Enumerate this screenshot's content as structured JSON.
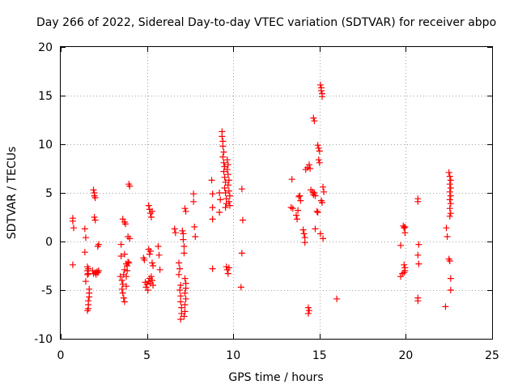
{
  "chart_data": {
    "type": "scatter",
    "title": "Day 266 of 2022, Sidereal Day-to-day VTEC variation (SDTVAR) for receiver abpo",
    "xlabel": "GPS time / hours",
    "ylabel": "SDTVAR / TECUs",
    "xlim": [
      0,
      25
    ],
    "ylim": [
      -10,
      20
    ],
    "xticks": [
      0,
      5,
      10,
      15,
      20,
      25
    ],
    "yticks": [
      -10,
      -5,
      0,
      5,
      10,
      15,
      20
    ],
    "grid": true,
    "marker": "+",
    "color": "#ff0000",
    "series": [
      {
        "name": "SDTVAR",
        "points": [
          [
            0.7,
            2.4
          ],
          [
            0.7,
            2.1
          ],
          [
            0.75,
            1.4
          ],
          [
            0.7,
            -2.4
          ],
          [
            1.4,
            1.3
          ],
          [
            1.45,
            0.4
          ],
          [
            1.4,
            -1.1
          ],
          [
            1.45,
            -4.1
          ],
          [
            1.55,
            -2.6
          ],
          [
            1.55,
            -3.0
          ],
          [
            1.55,
            -3.4
          ],
          [
            1.6,
            -2.8
          ],
          [
            1.6,
            -3.3
          ],
          [
            1.65,
            -4.9
          ],
          [
            1.65,
            -5.3
          ],
          [
            1.65,
            -5.7
          ],
          [
            1.6,
            -6.1
          ],
          [
            1.6,
            -6.5
          ],
          [
            1.6,
            -6.9
          ],
          [
            1.55,
            -7.1
          ],
          [
            1.9,
            5.3
          ],
          [
            1.95,
            5.0
          ],
          [
            1.95,
            4.7
          ],
          [
            2.0,
            4.5
          ],
          [
            1.95,
            2.5
          ],
          [
            2.0,
            2.2
          ],
          [
            1.85,
            -3.0
          ],
          [
            1.9,
            -3.3
          ],
          [
            2.0,
            -3.2
          ],
          [
            2.05,
            -3.4
          ],
          [
            2.1,
            -3.1
          ],
          [
            2.15,
            -3.2
          ],
          [
            2.2,
            -3.0
          ],
          [
            2.2,
            -0.3
          ],
          [
            2.15,
            -0.5
          ],
          [
            3.5,
            -0.3
          ],
          [
            3.5,
            -1.5
          ],
          [
            3.45,
            -3.6
          ],
          [
            3.55,
            -4.0
          ],
          [
            3.6,
            -4.4
          ],
          [
            3.55,
            -4.9
          ],
          [
            3.6,
            -5.3
          ],
          [
            3.65,
            -5.8
          ],
          [
            3.7,
            -6.2
          ],
          [
            3.65,
            -3.4
          ],
          [
            3.7,
            -2.9
          ],
          [
            3.7,
            -1.3
          ],
          [
            3.6,
            2.3
          ],
          [
            3.7,
            2.0
          ],
          [
            3.75,
            1.8
          ],
          [
            3.8,
            -2.3
          ],
          [
            3.85,
            -2.5
          ],
          [
            3.9,
            -2.1
          ],
          [
            3.95,
            -2.2
          ],
          [
            3.9,
            0.5
          ],
          [
            4.0,
            0.3
          ],
          [
            3.95,
            5.9
          ],
          [
            4.0,
            5.7
          ],
          [
            3.85,
            -3.0
          ],
          [
            3.8,
            -3.6
          ],
          [
            3.8,
            -4.6
          ],
          [
            4.8,
            -1.7
          ],
          [
            4.85,
            -1.9
          ],
          [
            4.9,
            -4.2
          ],
          [
            4.95,
            -4.7
          ],
          [
            5.0,
            -4.4
          ],
          [
            5.05,
            -5.0
          ],
          [
            5.1,
            -4.1
          ],
          [
            5.15,
            -3.8
          ],
          [
            5.2,
            -4.3
          ],
          [
            5.25,
            -3.6
          ],
          [
            5.3,
            -4.0
          ],
          [
            5.35,
            -4.5
          ],
          [
            5.1,
            -0.8
          ],
          [
            5.15,
            -1.3
          ],
          [
            5.2,
            -1.0
          ],
          [
            5.3,
            -2.2
          ],
          [
            5.35,
            -2.5
          ],
          [
            5.1,
            3.7
          ],
          [
            5.15,
            3.3
          ],
          [
            5.2,
            2.9
          ],
          [
            5.25,
            2.5
          ],
          [
            5.3,
            3.1
          ],
          [
            5.65,
            -0.5
          ],
          [
            5.7,
            -1.4
          ],
          [
            5.75,
            -2.9
          ],
          [
            6.6,
            1.3
          ],
          [
            6.65,
            0.9
          ],
          [
            6.85,
            -2.2
          ],
          [
            6.9,
            -2.8
          ],
          [
            6.85,
            -3.4
          ],
          [
            6.95,
            -4.5
          ],
          [
            6.9,
            -5.0
          ],
          [
            6.95,
            -5.6
          ],
          [
            6.95,
            -6.2
          ],
          [
            7.0,
            -6.8
          ],
          [
            7.0,
            -7.4
          ],
          [
            6.95,
            -8.0
          ],
          [
            7.05,
            1.1
          ],
          [
            7.1,
            0.8
          ],
          [
            7.1,
            0.2
          ],
          [
            7.15,
            -0.5
          ],
          [
            7.15,
            -1.2
          ],
          [
            7.2,
            -3.8
          ],
          [
            7.25,
            -4.3
          ],
          [
            7.25,
            -4.8
          ],
          [
            7.2,
            -5.3
          ],
          [
            7.25,
            -5.9
          ],
          [
            7.2,
            -6.5
          ],
          [
            7.2,
            -7.2
          ],
          [
            7.15,
            -7.7
          ],
          [
            7.2,
            3.4
          ],
          [
            7.25,
            3.1
          ],
          [
            7.7,
            4.9
          ],
          [
            7.7,
            4.1
          ],
          [
            7.75,
            1.5
          ],
          [
            7.8,
            0.5
          ],
          [
            8.75,
            6.3
          ],
          [
            8.8,
            4.9
          ],
          [
            8.8,
            3.5
          ],
          [
            8.8,
            2.3
          ],
          [
            8.8,
            -2.8
          ],
          [
            9.2,
            5.0
          ],
          [
            9.2,
            3.0
          ],
          [
            9.25,
            4.3
          ],
          [
            9.35,
            11.3
          ],
          [
            9.35,
            10.8
          ],
          [
            9.4,
            10.3
          ],
          [
            9.4,
            9.8
          ],
          [
            9.45,
            9.2
          ],
          [
            9.4,
            8.7
          ],
          [
            9.45,
            8.1
          ],
          [
            9.5,
            7.7
          ],
          [
            9.45,
            7.2
          ],
          [
            9.5,
            6.6
          ],
          [
            9.55,
            6.1
          ],
          [
            9.5,
            5.5
          ],
          [
            9.55,
            5.0
          ],
          [
            9.6,
            4.4
          ],
          [
            9.6,
            3.9
          ],
          [
            9.55,
            3.5
          ],
          [
            9.65,
            8.4
          ],
          [
            9.7,
            7.9
          ],
          [
            9.65,
            7.4
          ],
          [
            9.7,
            6.9
          ],
          [
            9.75,
            6.3
          ],
          [
            9.7,
            5.8
          ],
          [
            9.75,
            5.2
          ],
          [
            9.8,
            4.7
          ],
          [
            9.75,
            4.1
          ],
          [
            9.8,
            3.7
          ],
          [
            9.6,
            -2.6
          ],
          [
            9.65,
            -2.9
          ],
          [
            9.7,
            -3.3
          ],
          [
            9.75,
            -2.7
          ],
          [
            10.5,
            5.4
          ],
          [
            10.55,
            2.2
          ],
          [
            10.5,
            -1.2
          ],
          [
            10.45,
            -4.7
          ],
          [
            13.4,
            6.4
          ],
          [
            13.35,
            3.5
          ],
          [
            13.45,
            3.4
          ],
          [
            13.65,
            2.7
          ],
          [
            13.7,
            2.3
          ],
          [
            13.75,
            3.2
          ],
          [
            13.8,
            4.6
          ],
          [
            13.85,
            4.7
          ],
          [
            13.9,
            4.2
          ],
          [
            14.05,
            1.2
          ],
          [
            14.1,
            0.8
          ],
          [
            14.15,
            0.4
          ],
          [
            14.15,
            -0.1
          ],
          [
            14.2,
            7.4
          ],
          [
            14.3,
            7.6
          ],
          [
            14.4,
            7.9
          ],
          [
            14.45,
            7.5
          ],
          [
            14.5,
            5.3
          ],
          [
            14.6,
            5.1
          ],
          [
            14.65,
            4.8
          ],
          [
            14.7,
            5.0
          ],
          [
            14.75,
            4.7
          ],
          [
            14.35,
            -6.8
          ],
          [
            14.4,
            -7.1
          ],
          [
            14.35,
            -7.4
          ],
          [
            14.65,
            12.7
          ],
          [
            14.7,
            12.4
          ],
          [
            14.75,
            1.3
          ],
          [
            14.85,
            3.1
          ],
          [
            14.9,
            3.0
          ],
          [
            14.9,
            9.9
          ],
          [
            14.95,
            9.6
          ],
          [
            15.0,
            9.3
          ],
          [
            14.95,
            8.4
          ],
          [
            15.0,
            8.1
          ],
          [
            15.05,
            0.8
          ],
          [
            15.1,
            4.2
          ],
          [
            15.15,
            4.0
          ],
          [
            15.05,
            16.1
          ],
          [
            15.1,
            15.8
          ],
          [
            15.1,
            15.5
          ],
          [
            15.15,
            15.2
          ],
          [
            15.15,
            14.9
          ],
          [
            15.2,
            5.6
          ],
          [
            15.25,
            5.1
          ],
          [
            15.2,
            0.3
          ],
          [
            16.0,
            -5.9
          ],
          [
            19.7,
            -0.4
          ],
          [
            19.7,
            -3.6
          ],
          [
            19.8,
            -3.3
          ],
          [
            19.85,
            1.6
          ],
          [
            19.9,
            1.4
          ],
          [
            19.95,
            1.5
          ],
          [
            19.95,
            0.9
          ],
          [
            19.9,
            -2.4
          ],
          [
            19.95,
            -2.7
          ],
          [
            19.95,
            -3.0
          ],
          [
            19.9,
            -3.2
          ],
          [
            20.7,
            4.4
          ],
          [
            20.7,
            4.1
          ],
          [
            20.75,
            -0.3
          ],
          [
            20.7,
            -1.4
          ],
          [
            20.75,
            -2.3
          ],
          [
            20.7,
            -5.8
          ],
          [
            20.7,
            -6.1
          ],
          [
            22.3,
            -6.7
          ],
          [
            22.35,
            1.4
          ],
          [
            22.4,
            0.5
          ],
          [
            22.5,
            7.1
          ],
          [
            22.55,
            6.7
          ],
          [
            22.6,
            6.3
          ],
          [
            22.55,
            5.9
          ],
          [
            22.6,
            5.5
          ],
          [
            22.55,
            5.1
          ],
          [
            22.6,
            4.7
          ],
          [
            22.55,
            4.3
          ],
          [
            22.6,
            3.9
          ],
          [
            22.55,
            3.4
          ],
          [
            22.6,
            2.9
          ],
          [
            22.55,
            2.6
          ],
          [
            22.5,
            -1.8
          ],
          [
            22.55,
            -2.0
          ],
          [
            22.6,
            -3.8
          ],
          [
            22.6,
            -5.0
          ]
        ]
      }
    ]
  }
}
